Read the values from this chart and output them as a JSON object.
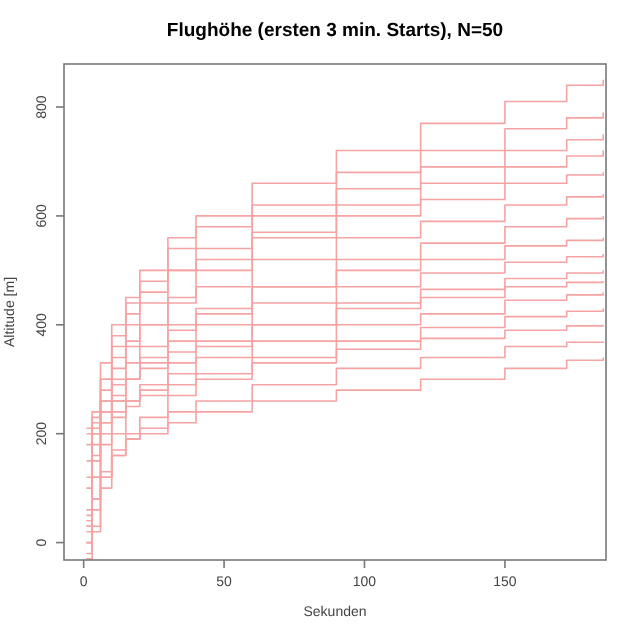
{
  "chart_data": {
    "type": "step",
    "title": "Flughöhe (ersten 3 min. Starts), N=50",
    "xlabel": "Sekunden",
    "ylabel": "Altitude [m]",
    "x": [
      1,
      3,
      6,
      10,
      15,
      20,
      30,
      40,
      60,
      90,
      120,
      150,
      172,
      185
    ],
    "xlim": [
      -7,
      186
    ],
    "ylim": [
      -32,
      879
    ],
    "xticks": [
      0,
      50,
      100,
      150
    ],
    "yticks": [
      0,
      200,
      400,
      600,
      800
    ],
    "line_style": "solid",
    "series": [
      {
        "color": "#f5a3a3",
        "values": [
          30,
          180,
          300,
          380,
          450,
          500,
          560,
          600,
          660,
          720,
          770,
          810,
          840,
          850
        ]
      },
      {
        "color": "#f5a3a3",
        "values": [
          100,
          220,
          330,
          400,
          440,
          480,
          540,
          580,
          620,
          680,
          720,
          760,
          780,
          790
        ]
      },
      {
        "color": "#f5a3a3",
        "values": [
          20,
          120,
          260,
          340,
          400,
          440,
          500,
          540,
          600,
          650,
          690,
          720,
          740,
          750
        ]
      },
      {
        "color": "#f5a3a3",
        "values": [
          200,
          240,
          300,
          360,
          420,
          460,
          500,
          520,
          570,
          620,
          660,
          690,
          710,
          720
        ]
      },
      {
        "color": "#f5a3a3",
        "values": [
          50,
          150,
          240,
          300,
          360,
          400,
          450,
          500,
          560,
          600,
          630,
          660,
          675,
          680
        ]
      },
      {
        "color": "#f5a3a3",
        "values": [
          120,
          210,
          280,
          320,
          370,
          400,
          440,
          470,
          520,
          560,
          590,
          620,
          635,
          640
        ]
      },
      {
        "color": "#f5a3a3",
        "values": [
          0,
          80,
          200,
          260,
          300,
          340,
          390,
          420,
          470,
          520,
          550,
          580,
          595,
          600
        ]
      },
      {
        "color": "#f5a3a3",
        "values": [
          210,
          230,
          260,
          290,
          330,
          360,
          400,
          430,
          470,
          500,
          520,
          545,
          555,
          560
        ]
      },
      {
        "color": "#f5a3a3",
        "values": [
          40,
          160,
          220,
          260,
          300,
          330,
          370,
          400,
          440,
          470,
          495,
          515,
          525,
          530
        ]
      },
      {
        "color": "#f5a3a3",
        "values": [
          -20,
          30,
          120,
          200,
          250,
          290,
          330,
          360,
          400,
          440,
          465,
          485,
          495,
          500
        ]
      },
      {
        "color": "#f5a3a3",
        "values": [
          150,
          200,
          240,
          270,
          300,
          320,
          350,
          370,
          400,
          430,
          450,
          470,
          478,
          480
        ]
      },
      {
        "color": "#f5a3a3",
        "values": [
          60,
          120,
          180,
          230,
          260,
          280,
          310,
          340,
          370,
          400,
          420,
          445,
          455,
          460
        ]
      },
      {
        "color": "#f5a3a3",
        "values": [
          -30,
          20,
          100,
          160,
          200,
          230,
          270,
          300,
          340,
          370,
          395,
          415,
          425,
          430
        ]
      },
      {
        "color": "#f5a3a3",
        "values": [
          180,
          200,
          220,
          240,
          260,
          270,
          290,
          310,
          330,
          355,
          375,
          390,
          398,
          400
        ]
      },
      {
        "color": "#f5a3a3",
        "values": [
          0,
          60,
          120,
          160,
          190,
          210,
          240,
          260,
          290,
          320,
          340,
          360,
          368,
          370
        ]
      },
      {
        "color": "#f5a3a3",
        "values": [
          30,
          80,
          130,
          170,
          190,
          200,
          220,
          240,
          260,
          280,
          300,
          320,
          335,
          340
        ]
      }
    ]
  }
}
